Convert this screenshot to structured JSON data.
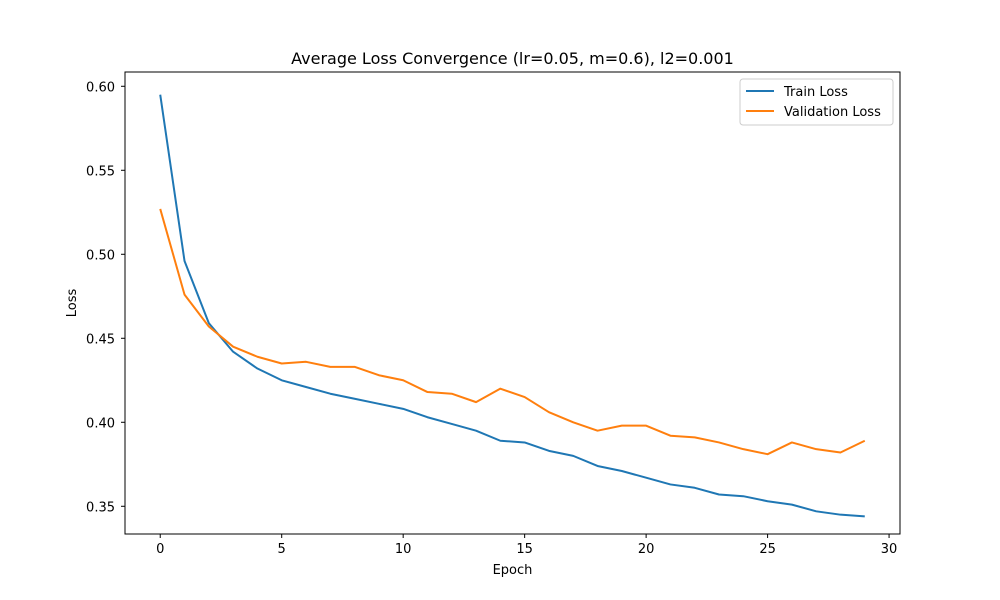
{
  "chart_data": {
    "type": "line",
    "title": "Average Loss Convergence (lr=0.05, m=0.6), l2=0.001",
    "xlabel": "Epoch",
    "ylabel": "Loss",
    "xlim": [
      -1.45,
      30.45
    ],
    "ylim": [
      0.3335,
      0.6085
    ],
    "xticks": [
      0,
      5,
      10,
      15,
      20,
      25,
      30
    ],
    "xtick_labels": [
      "0",
      "5",
      "10",
      "15",
      "20",
      "25",
      "30"
    ],
    "yticks": [
      0.35,
      0.4,
      0.45,
      0.5,
      0.55,
      0.6
    ],
    "ytick_labels": [
      "0.35",
      "0.40",
      "0.45",
      "0.50",
      "0.55",
      "0.60"
    ],
    "grid": false,
    "legend": "top-right",
    "x": [
      0,
      1,
      2,
      3,
      4,
      5,
      6,
      7,
      8,
      9,
      10,
      11,
      12,
      13,
      14,
      15,
      16,
      17,
      18,
      19,
      20,
      21,
      22,
      23,
      24,
      25,
      26,
      27,
      28,
      29
    ],
    "series": [
      {
        "name": "Train Loss",
        "color": "#1f77b4",
        "values": [
          0.595,
          0.496,
          0.459,
          0.442,
          0.432,
          0.425,
          0.421,
          0.417,
          0.414,
          0.411,
          0.408,
          0.403,
          0.399,
          0.395,
          0.389,
          0.388,
          0.383,
          0.38,
          0.374,
          0.371,
          0.367,
          0.363,
          0.361,
          0.357,
          0.356,
          0.353,
          0.351,
          0.347,
          0.345,
          0.344
        ]
      },
      {
        "name": "Validation Loss",
        "color": "#ff7f0e",
        "values": [
          0.527,
          0.476,
          0.457,
          0.445,
          0.439,
          0.435,
          0.436,
          0.433,
          0.433,
          0.428,
          0.425,
          0.418,
          0.417,
          0.412,
          0.42,
          0.415,
          0.406,
          0.4,
          0.395,
          0.398,
          0.398,
          0.392,
          0.391,
          0.388,
          0.384,
          0.381,
          0.388,
          0.384,
          0.382,
          0.389
        ]
      }
    ]
  }
}
